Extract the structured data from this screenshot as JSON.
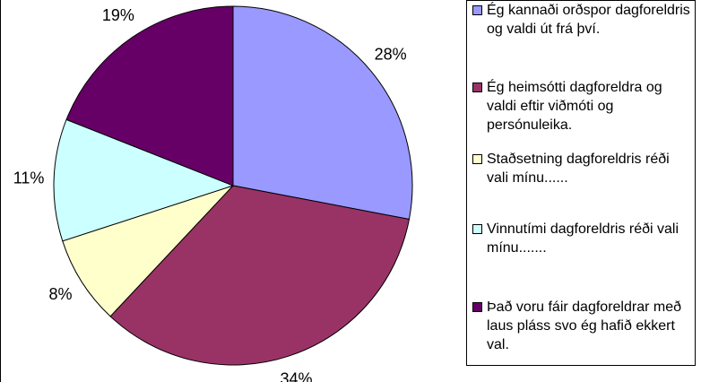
{
  "chart_data": {
    "type": "pie",
    "categories": [
      "Ég kannaði orðspor dagforeldris og valdi út frá því.",
      "Ég heimsótti dagforeldra og valdi eftir viðmóti og persónuleika.",
      "Staðsetning dagforeldris réði vali mínu......",
      "Vinnutími dagforeldris réði vali mínu.......",
      "Það voru fáir dagforeldrar með laus pláss svo ég hafið ekkert val."
    ],
    "values": [
      28,
      34,
      8,
      11,
      19
    ],
    "value_labels": [
      "28%",
      "34%",
      "8%",
      "11%",
      "19%"
    ],
    "colors": [
      "#9999ff",
      "#993366",
      "#ffffcc",
      "#ccffff",
      "#660066"
    ],
    "legend": "right"
  }
}
